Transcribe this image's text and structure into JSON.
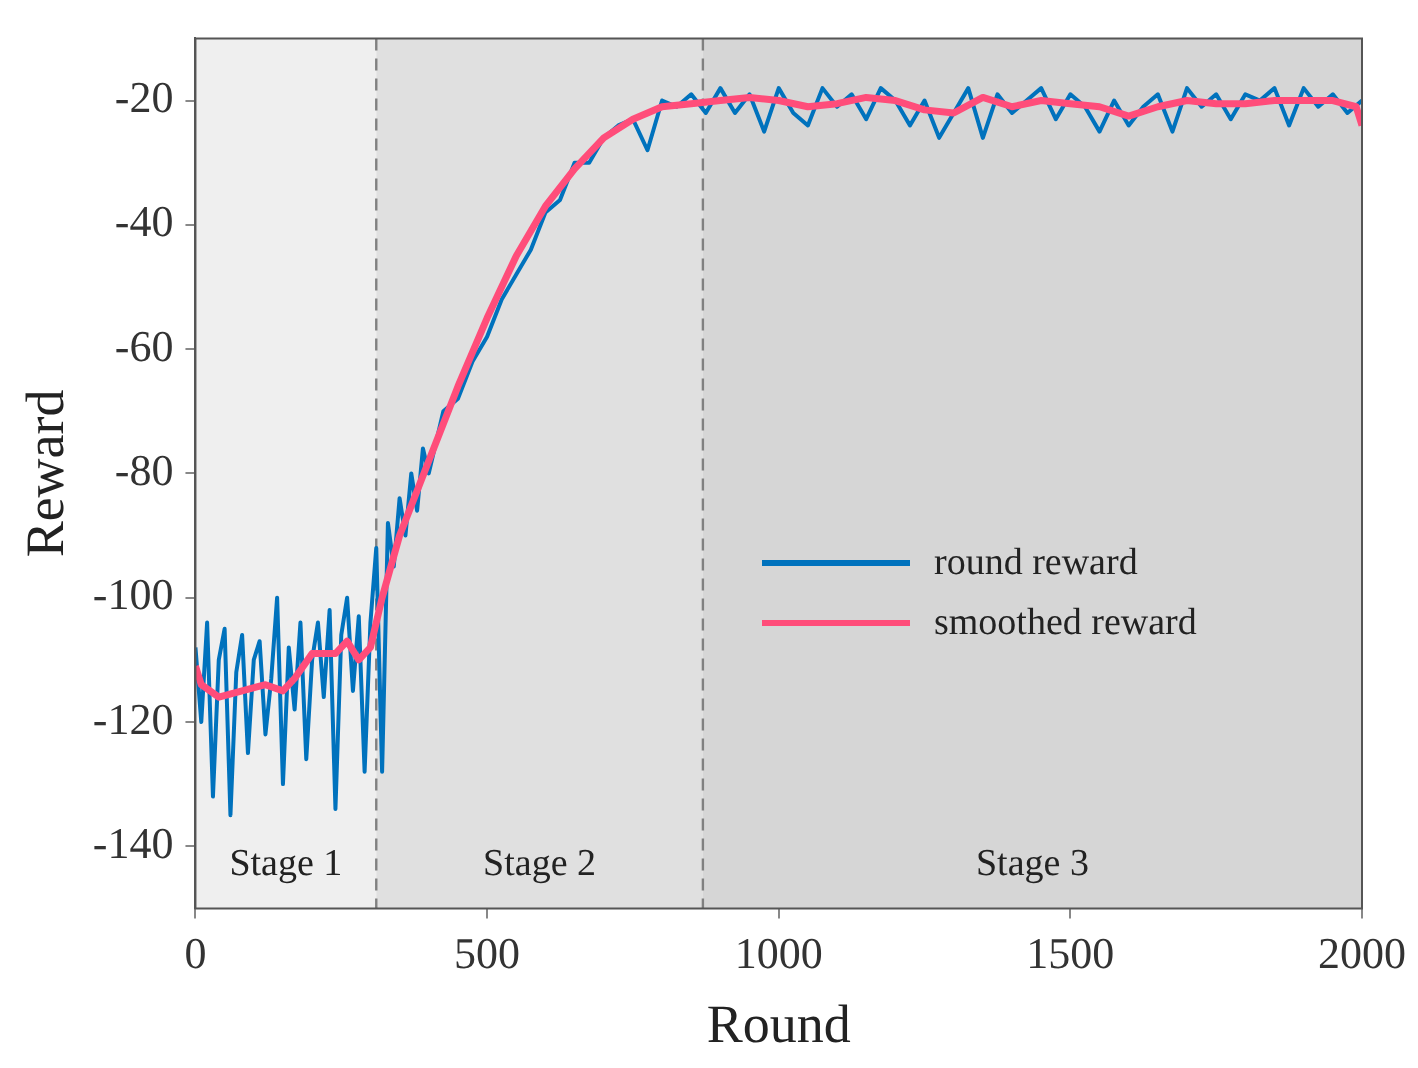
{
  "chart_data": {
    "type": "line",
    "xlabel": "Round",
    "ylabel": "Reward",
    "xlim": [
      0,
      2000
    ],
    "xticks": [
      0,
      500,
      1000,
      1500,
      2000
    ],
    "ylim": [
      -150,
      -10
    ],
    "yticks": [
      -140,
      -120,
      -100,
      -80,
      -60,
      -40,
      -20
    ],
    "grid": false,
    "legend": "right",
    "marker": "none",
    "line_style": "solid",
    "bands": [
      {
        "axis": "x",
        "from": 0,
        "to": 310,
        "label": "Stage 1",
        "color": "#efefef"
      },
      {
        "axis": "x",
        "from": 310,
        "to": 870,
        "label": "Stage 2",
        "color": "#e0e0e0"
      },
      {
        "axis": "x",
        "from": 870,
        "to": 2000,
        "label": "Stage 3",
        "color": "#d6d6d6"
      }
    ],
    "ref_lines": [
      {
        "axis": "x",
        "value": 310,
        "color": "#808080",
        "line_style": "dashed"
      },
      {
        "axis": "x",
        "value": 870,
        "color": "#808080",
        "line_style": "dashed"
      }
    ],
    "series": [
      {
        "name": "round reward",
        "color": "#0072bd",
        "x": [
          0,
          10,
          20,
          30,
          40,
          50,
          60,
          70,
          80,
          90,
          100,
          110,
          120,
          130,
          140,
          150,
          160,
          170,
          180,
          190,
          200,
          210,
          220,
          230,
          240,
          250,
          260,
          270,
          280,
          290,
          300,
          310,
          320,
          330,
          340,
          350,
          360,
          370,
          380,
          390,
          400,
          425,
          450,
          475,
          500,
          525,
          550,
          575,
          600,
          625,
          650,
          675,
          700,
          725,
          750,
          775,
          800,
          825,
          850,
          875,
          900,
          925,
          950,
          975,
          1000,
          1025,
          1050,
          1075,
          1100,
          1125,
          1150,
          1175,
          1200,
          1225,
          1250,
          1275,
          1300,
          1325,
          1350,
          1375,
          1400,
          1425,
          1450,
          1475,
          1500,
          1525,
          1550,
          1575,
          1600,
          1625,
          1650,
          1675,
          1700,
          1725,
          1750,
          1775,
          1800,
          1825,
          1850,
          1875,
          1900,
          1925,
          1950,
          1975,
          2000
        ],
        "values": [
          -108,
          -120,
          -104,
          -132,
          -110,
          -105,
          -135,
          -112,
          -106,
          -125,
          -110,
          -107,
          -122,
          -113,
          -100,
          -130,
          -108,
          -118,
          -104,
          -126,
          -110,
          -104,
          -116,
          -102,
          -134,
          -106,
          -100,
          -115,
          -103,
          -128,
          -104,
          -92,
          -128,
          -88,
          -95,
          -84,
          -90,
          -80,
          -86,
          -76,
          -80,
          -70,
          -68,
          -62,
          -58,
          -52,
          -48,
          -44,
          -38,
          -36,
          -30,
          -30,
          -26,
          -24,
          -23,
          -28,
          -20,
          -21,
          -19,
          -22,
          -18,
          -22,
          -19,
          -25,
          -18,
          -22,
          -24,
          -18,
          -21,
          -19,
          -23,
          -18,
          -20,
          -24,
          -20,
          -26,
          -22,
          -18,
          -26,
          -19,
          -22,
          -20,
          -18,
          -23,
          -19,
          -21,
          -25,
          -20,
          -24,
          -21,
          -19,
          -25,
          -18,
          -21,
          -19,
          -23,
          -19,
          -20,
          -18,
          -24,
          -18,
          -21,
          -19,
          -22,
          -20
        ]
      },
      {
        "name": "smoothed reward",
        "color": "#ff4d7a",
        "x": [
          0,
          10,
          40,
          80,
          120,
          150,
          170,
          200,
          240,
          260,
          280,
          300,
          320,
          350,
          400,
          450,
          500,
          550,
          600,
          650,
          700,
          750,
          800,
          850,
          900,
          950,
          1000,
          1050,
          1100,
          1150,
          1200,
          1250,
          1300,
          1350,
          1400,
          1450,
          1500,
          1550,
          1600,
          1650,
          1700,
          1750,
          1800,
          1850,
          1900,
          1950,
          1990,
          2000
        ],
        "values": [
          -111,
          -114,
          -116,
          -115,
          -114,
          -115,
          -113,
          -109,
          -109,
          -107,
          -110,
          -108,
          -100,
          -90,
          -78,
          -66,
          -55,
          -45,
          -37,
          -31,
          -26,
          -23,
          -21,
          -20.5,
          -20,
          -19.5,
          -20,
          -21,
          -20.5,
          -19.5,
          -20,
          -21.5,
          -22,
          -19.5,
          -21,
          -20,
          -20.5,
          -21,
          -22.5,
          -21,
          -20,
          -20.5,
          -20.5,
          -20,
          -20,
          -20,
          -21,
          -24
        ]
      }
    ]
  }
}
